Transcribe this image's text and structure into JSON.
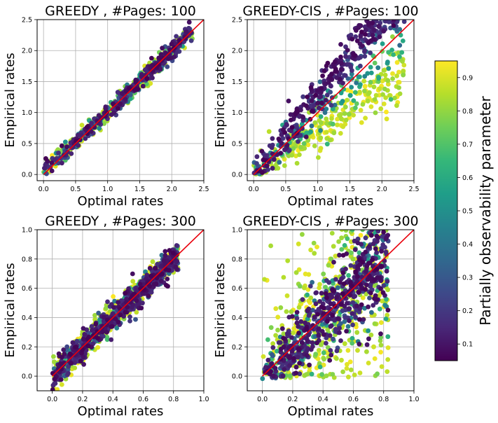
{
  "chart_data": [
    {
      "type": "scatter",
      "title": "GREEDY , #Pages: 100",
      "xlabel": "Optimal rates",
      "ylabel": "Empirical rates",
      "xlim": [
        -0.1,
        2.5
      ],
      "ylim": [
        -0.1,
        2.5
      ],
      "xticks": [
        "0.0",
        "0.5",
        "1.0",
        "1.5",
        "2.0",
        "2.5"
      ],
      "yticks": [
        "0.0",
        "0.5",
        "1.0",
        "1.5",
        "2.0",
        "2.5"
      ],
      "grid": true,
      "reference_line": "y = x",
      "pattern": "tight",
      "max": 2.32
    },
    {
      "type": "scatter",
      "title": "GREEDY-CIS , #Pages: 100",
      "xlabel": "Optimal rates",
      "ylabel": "Empirical rates",
      "xlim": [
        -0.1,
        2.5
      ],
      "ylim": [
        -0.1,
        2.5
      ],
      "xticks": [
        "0.0",
        "0.5",
        "1.0",
        "1.5",
        "2.0",
        "2.5"
      ],
      "yticks": [
        "0.0",
        "0.5",
        "1.0",
        "1.5",
        "2.0",
        "2.5"
      ],
      "grid": true,
      "reference_line": "y = x",
      "pattern": "fan",
      "max": 2.35
    },
    {
      "type": "scatter",
      "title": "GREEDY , #Pages: 300",
      "xlabel": "Optimal rates",
      "ylabel": "Empirical rates",
      "xlim": [
        -0.1,
        1.0
      ],
      "ylim": [
        -0.1,
        1.0
      ],
      "xticks": [
        "0.0",
        "0.2",
        "0.4",
        "0.6",
        "0.8",
        "1.0"
      ],
      "yticks": [
        "0.0",
        "0.2",
        "0.4",
        "0.6",
        "0.8",
        "1.0"
      ],
      "grid": true,
      "reference_line": "y = x",
      "pattern": "band",
      "max": 0.83
    },
    {
      "type": "scatter",
      "title": "GREEDY-CIS , #Pages: 300",
      "xlabel": "Optimal rates",
      "ylabel": "Empirical rates",
      "xlim": [
        -0.1,
        1.0
      ],
      "ylim": [
        -0.1,
        1.0
      ],
      "xticks": [
        "0.0",
        "0.2",
        "0.4",
        "0.6",
        "0.8",
        "1.0"
      ],
      "yticks": [
        "0.0",
        "0.2",
        "0.4",
        "0.6",
        "0.8",
        "1.0"
      ],
      "grid": true,
      "reference_line": "y = x",
      "pattern": "wide",
      "max": 0.83
    }
  ],
  "colorbar": {
    "label": "Partially observability parameter",
    "colormap": "viridis",
    "range": [
      0.05,
      0.95
    ],
    "ticks": [
      "0.1",
      "0.2",
      "0.3",
      "0.4",
      "0.5",
      "0.6",
      "0.7",
      "0.8",
      "0.9"
    ]
  },
  "colors": {
    "reference_line": "#e8000b",
    "grid": "#b0b0b0"
  }
}
